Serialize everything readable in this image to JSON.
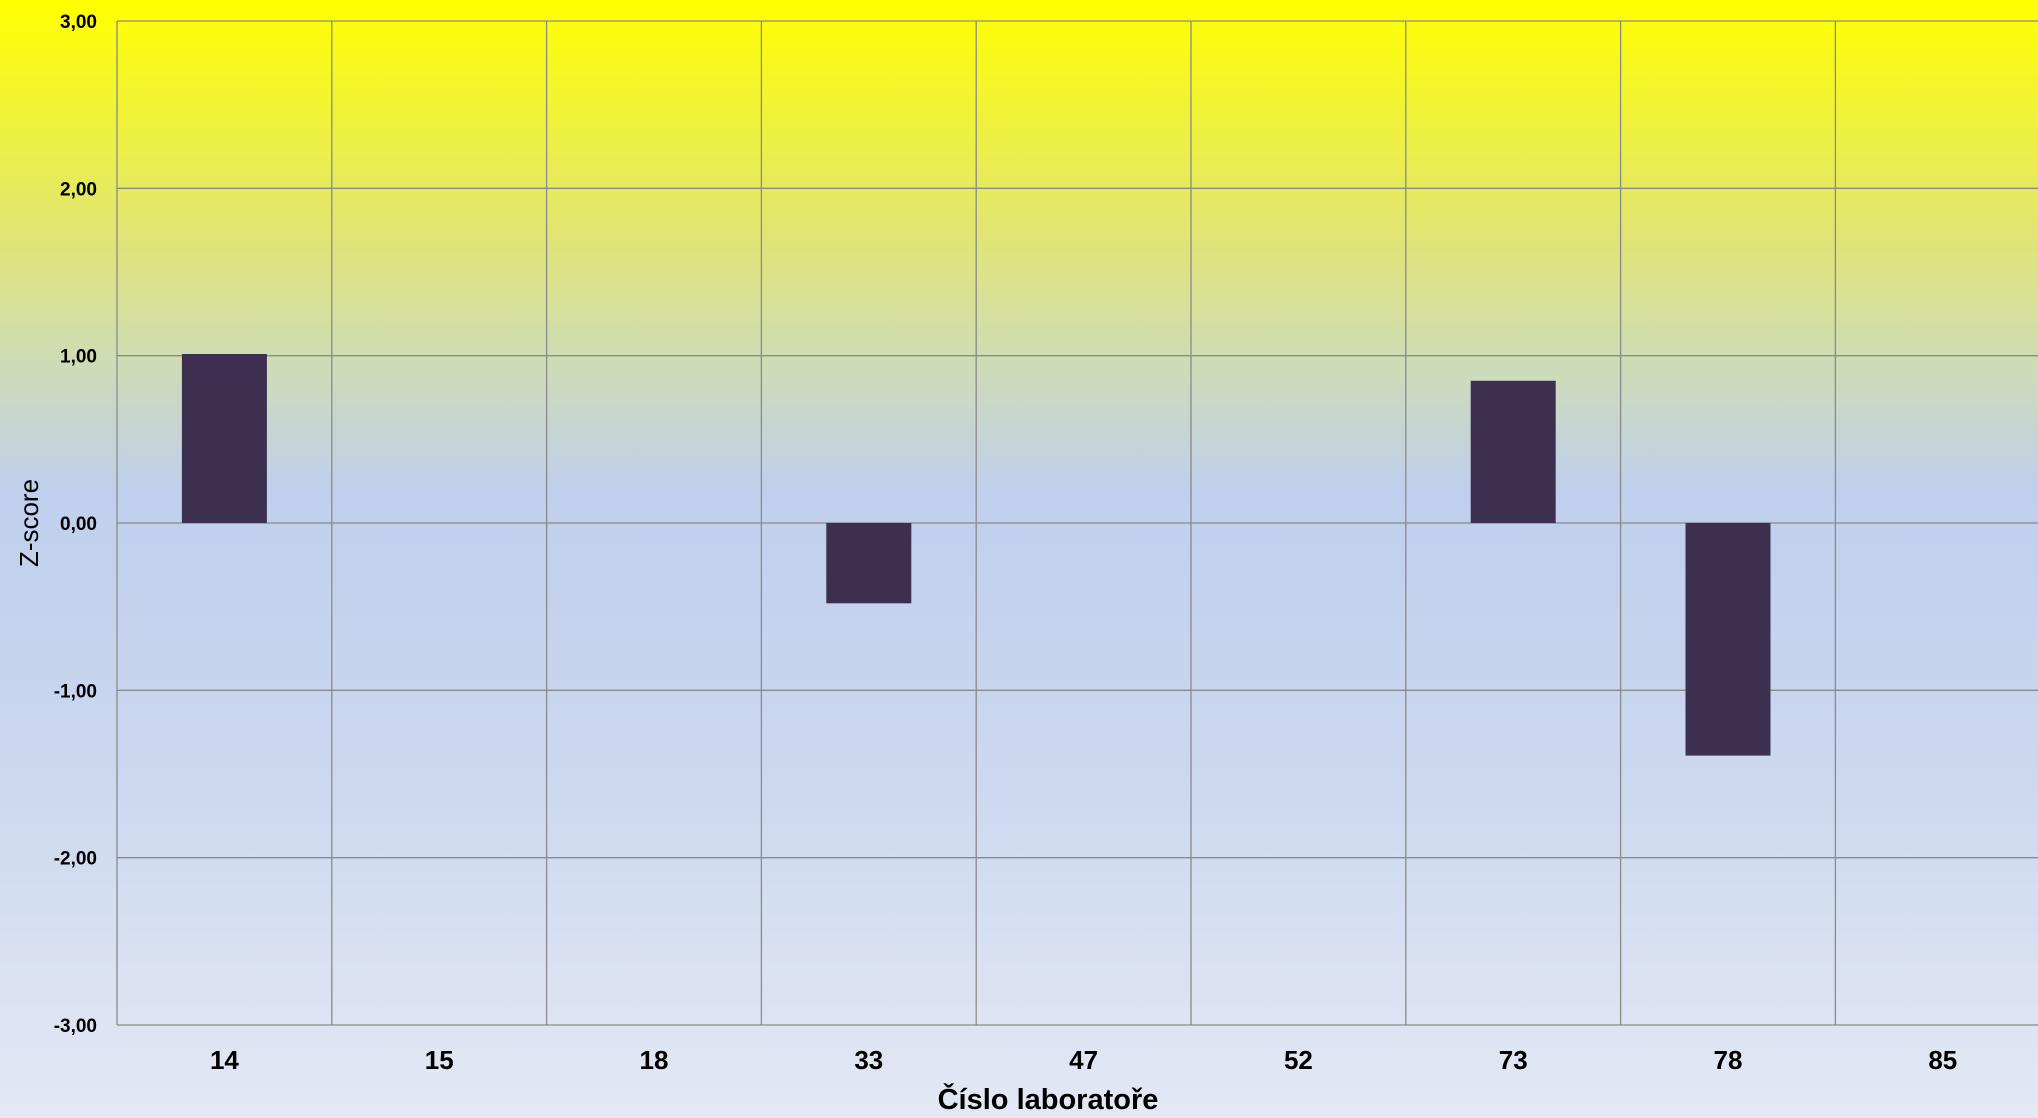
{
  "chart_data": {
    "type": "bar",
    "categories": [
      "14",
      "15",
      "18",
      "33",
      "47",
      "52",
      "73",
      "78",
      "85"
    ],
    "values": [
      1.01,
      null,
      null,
      -0.48,
      null,
      null,
      0.85,
      -1.39,
      null
    ],
    "ylim": [
      -3,
      3
    ],
    "yticks": [
      "-3,00",
      "-2,00",
      "-1,00",
      "0,00",
      "1,00",
      "2,00",
      "3,00"
    ],
    "xlabel": "Číslo laboratoře",
    "ylabel": "Z-score",
    "grid": true,
    "bar_color": "#3d2f50"
  }
}
